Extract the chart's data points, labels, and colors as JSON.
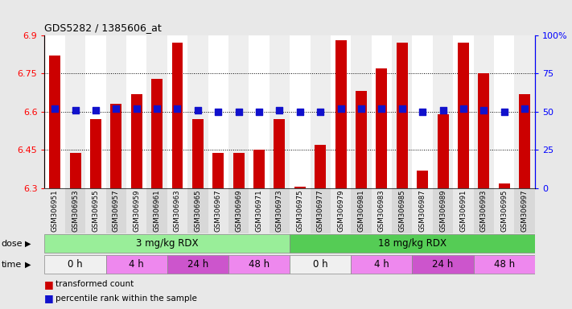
{
  "title": "GDS5282 / 1385606_at",
  "samples": [
    "GSM306951",
    "GSM306953",
    "GSM306955",
    "GSM306957",
    "GSM306959",
    "GSM306961",
    "GSM306963",
    "GSM306965",
    "GSM306967",
    "GSM306969",
    "GSM306971",
    "GSM306973",
    "GSM306975",
    "GSM306977",
    "GSM306979",
    "GSM306981",
    "GSM306983",
    "GSM306985",
    "GSM306987",
    "GSM306989",
    "GSM306991",
    "GSM306993",
    "GSM306995",
    "GSM306997"
  ],
  "bar_values": [
    6.82,
    6.44,
    6.57,
    6.63,
    6.67,
    6.73,
    6.87,
    6.57,
    6.44,
    6.44,
    6.45,
    6.57,
    6.305,
    6.47,
    6.88,
    6.68,
    6.77,
    6.87,
    6.37,
    6.59,
    6.87,
    6.75,
    6.32,
    6.67
  ],
  "percentile_values_pct": [
    52,
    51,
    51,
    52,
    52,
    52,
    52,
    51,
    50,
    50,
    50,
    51,
    50,
    50,
    52,
    52,
    52,
    52,
    50,
    51,
    52,
    51,
    50,
    52
  ],
  "ylim_left": [
    6.3,
    6.9
  ],
  "ylim_right": [
    0,
    100
  ],
  "yticks_left": [
    6.3,
    6.45,
    6.6,
    6.75,
    6.9
  ],
  "yticks_right": [
    0,
    25,
    50,
    75,
    100
  ],
  "bar_color": "#cc0000",
  "dot_color": "#1111cc",
  "background_color": "#e8e8e8",
  "plot_bg_color": "#ffffff",
  "tick_bg_color": "#d0d0d0",
  "dose_groups": [
    {
      "label": "3 mg/kg RDX",
      "start": 0,
      "end": 11,
      "color": "#99ee99"
    },
    {
      "label": "18 mg/kg RDX",
      "start": 12,
      "end": 23,
      "color": "#55cc55"
    }
  ],
  "time_groups": [
    {
      "label": "0 h",
      "start": 0,
      "end": 2,
      "color": "#f8f8f8"
    },
    {
      "label": "4 h",
      "start": 3,
      "end": 5,
      "color": "#ee88ee"
    },
    {
      "label": "24 h",
      "start": 6,
      "end": 8,
      "color": "#dd55dd"
    },
    {
      "label": "48 h",
      "start": 9,
      "end": 11,
      "color": "#ee88ee"
    },
    {
      "label": "0 h",
      "start": 12,
      "end": 14,
      "color": "#f8f8f8"
    },
    {
      "label": "4 h",
      "start": 15,
      "end": 17,
      "color": "#ee88ee"
    },
    {
      "label": "24 h",
      "start": 18,
      "end": 20,
      "color": "#dd55dd"
    },
    {
      "label": "48 h",
      "start": 21,
      "end": 23,
      "color": "#ee88ee"
    }
  ],
  "legend_items": [
    {
      "color": "#cc0000",
      "label": "transformed count"
    },
    {
      "color": "#1111cc",
      "label": "percentile rank within the sample"
    }
  ],
  "bar_width": 0.55
}
